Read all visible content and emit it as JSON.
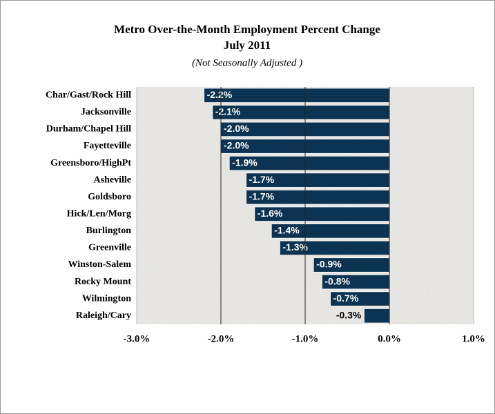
{
  "chart_data": {
    "type": "barh",
    "title": "Metro Over-the-Month Employment Percent Change",
    "subtitle": "July 2011",
    "note": "(Not Seasonally Adjusted )",
    "categories": [
      "Char/Gast/Rock Hill",
      "Jacksonville",
      "Durham/Chapel Hill",
      "Fayetteville",
      "Greensboro/HighPt",
      "Asheville",
      "Goldsboro",
      "Hick/Len/Morg",
      "Burlington",
      "Greenville",
      "Winston-Salem",
      "Rocky Mount",
      "Wilmington",
      "Raleigh/Cary"
    ],
    "values": [
      -2.2,
      -2.1,
      -2.0,
      -2.0,
      -1.9,
      -1.7,
      -1.7,
      -1.6,
      -1.4,
      -1.3,
      -0.9,
      -0.8,
      -0.7,
      -0.3
    ],
    "value_labels": [
      "-2.2%",
      "-2.1%",
      "-2.0%",
      "-2.0%",
      "-1.9%",
      "-1.7%",
      "-1.7%",
      "-1.6%",
      "-1.4%",
      "-1.3%",
      "-0.9%",
      "-0.8%",
      "-0.7%",
      "-0.3%"
    ],
    "color": "#0c3452",
    "xlim": [
      -3,
      1
    ],
    "xticks": [
      {
        "value": -3,
        "label": "-3.0%"
      },
      {
        "value": -2,
        "label": "-2.0%"
      },
      {
        "value": -1,
        "label": "-1.0%"
      },
      {
        "value": 0,
        "label": "0.0%"
      },
      {
        "value": 1,
        "label": "1.0%"
      }
    ],
    "grid": true
  }
}
